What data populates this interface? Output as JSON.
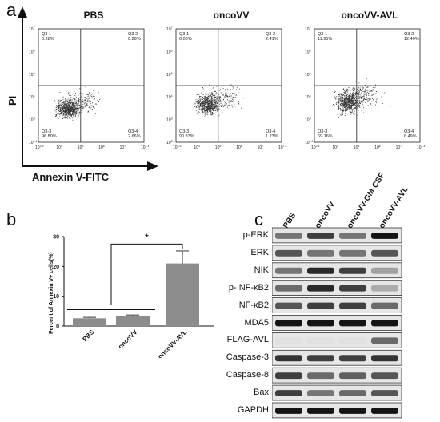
{
  "panel_labels": {
    "a": "a",
    "b": "b",
    "c": "c"
  },
  "flow": {
    "axis_y_title": "PI",
    "axis_x_title": "Annexin V-FITC",
    "x_ticks": [
      "10^2.5",
      "10^4",
      "10^5",
      "10^6",
      "10^7",
      "10^7.4"
    ],
    "y_ticks": [
      "10^2.4",
      "10^3",
      "10^4",
      "10^5",
      "10^6",
      "10^7"
    ],
    "plots": [
      {
        "title": "PBS",
        "q1": "Q3-1\n0.28%",
        "q2": "Q3-2\n0.26%",
        "q3": "Q3-3\n96.80%",
        "q4": "Q3-4\n2.66%",
        "q1_name": "Q3-1",
        "q1_val": "0.28%",
        "q2_name": "Q3-2",
        "q2_val": "0.26%",
        "q3_name": "Q3-3",
        "q3_val": "96.80%",
        "q4_name": "Q3-4",
        "q4_val": "2.66%"
      },
      {
        "title": "oncoVV",
        "q1_name": "Q3-1",
        "q1_val": "6.03%",
        "q2_name": "Q3-2",
        "q2_val": "2.41%",
        "q3_name": "Q3-3",
        "q3_val": "90.33%",
        "q4_name": "Q3-4",
        "q4_val": "1.23%"
      },
      {
        "title": "oncoVV-AVL",
        "q1_name": "Q3-1",
        "q1_val": "11.95%",
        "q2_name": "Q3-2",
        "q2_val": "12.40%",
        "q3_name": "Q3-3",
        "q3_val": "69.16%",
        "q4_name": "Q3-4",
        "q4_val": "6.49%"
      }
    ]
  },
  "chart_data": {
    "type": "bar",
    "categories": [
      "PBS",
      "oncoVV",
      "oncoVV-AVL"
    ],
    "values": [
      2.6,
      3.4,
      21.0
    ],
    "errors": [
      0.3,
      0.3,
      4.2
    ],
    "ylabel": "Percent of Annexin V+ cells(%)",
    "ylim": [
      0,
      30
    ],
    "y_ticks": [
      "0",
      "10",
      "20",
      "30"
    ],
    "significance": "*",
    "bar_color": "#8c8c8c"
  },
  "western": {
    "columns": [
      "PBS",
      "oncoVV",
      "oncoVV-GM-CSF",
      "oncoVV-AVL"
    ],
    "rows": [
      "p-ERK",
      "ERK",
      "NIK",
      "p- NF-κB2",
      "NF-κB2",
      "MDA5",
      "FLAG-AVL",
      "Caspase-3",
      "Caspase-8",
      "Bax",
      "GAPDH"
    ]
  }
}
